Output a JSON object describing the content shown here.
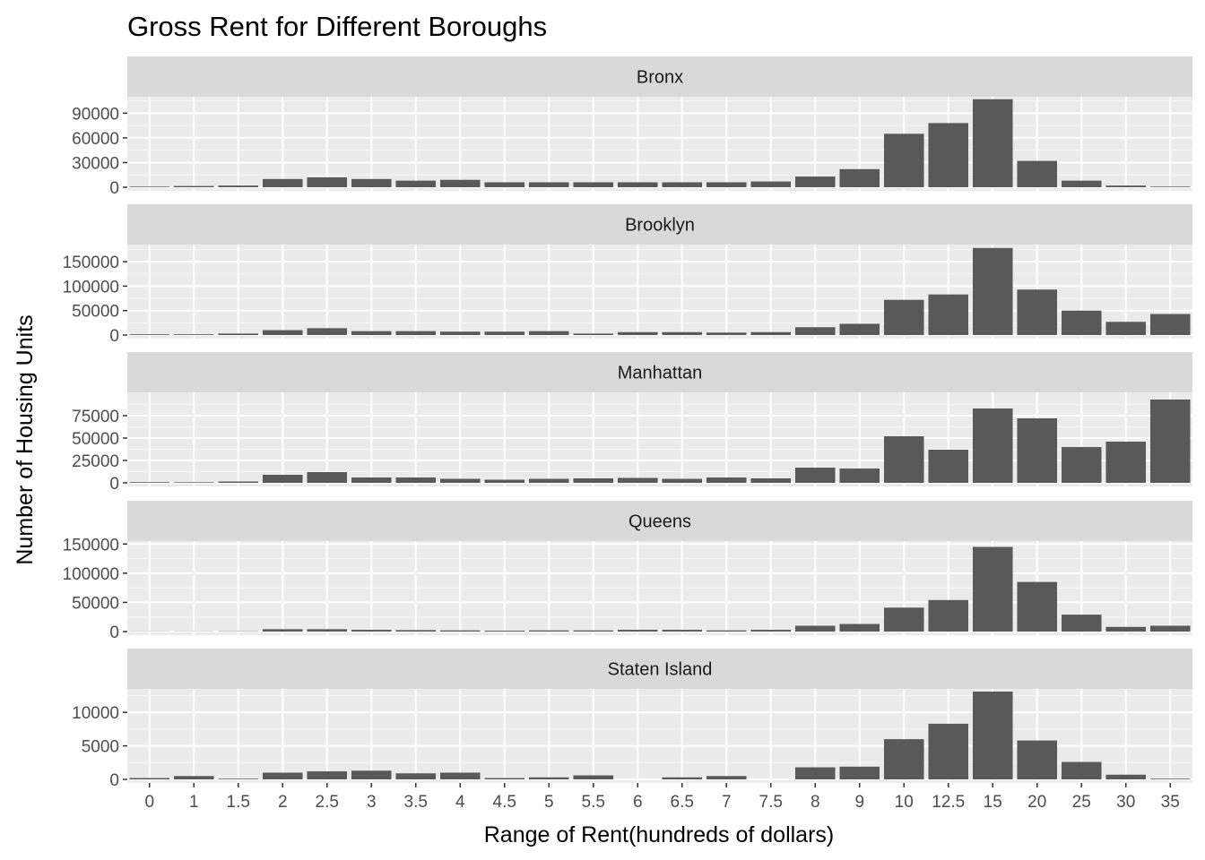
{
  "chart_data": {
    "type": "bar",
    "title": "Gross Rent for Different Boroughs",
    "xlabel": "Range of Rent(hundreds of dollars)",
    "ylabel": "Number of Housing Units",
    "categories": [
      "0",
      "1",
      "1.5",
      "2",
      "2.5",
      "3",
      "3.5",
      "4",
      "4.5",
      "5",
      "5.5",
      "6",
      "6.5",
      "7",
      "7.5",
      "8",
      "9",
      "10",
      "12.5",
      "15",
      "20",
      "25",
      "30",
      "35"
    ],
    "grid": true,
    "facets": [
      {
        "name": "Bronx",
        "ylim": [
          0,
          110000
        ],
        "yticks": [
          0,
          30000,
          60000,
          90000
        ],
        "values": [
          800,
          1500,
          2000,
          10000,
          12000,
          10000,
          8000,
          9000,
          6000,
          6000,
          6000,
          6000,
          6000,
          6000,
          7000,
          13000,
          22000,
          65000,
          78000,
          107000,
          32000,
          8000,
          2000,
          800
        ]
      },
      {
        "name": "Brooklyn",
        "ylim": [
          0,
          185000
        ],
        "yticks": [
          0,
          50000,
          100000,
          150000
        ],
        "values": [
          1500,
          1500,
          3000,
          10000,
          14000,
          8000,
          8000,
          7000,
          7000,
          8000,
          3000,
          6000,
          6000,
          5000,
          6000,
          16000,
          23000,
          72000,
          83000,
          178000,
          93000,
          50000,
          27000,
          43000
        ]
      },
      {
        "name": "Manhattan",
        "ylim": [
          0,
          101000
        ],
        "yticks": [
          0,
          25000,
          50000,
          75000
        ],
        "values": [
          800,
          700,
          1500,
          9000,
          12000,
          6000,
          6000,
          4500,
          3500,
          4500,
          5000,
          5500,
          4500,
          6000,
          5000,
          17000,
          16000,
          52000,
          37000,
          83000,
          72000,
          40000,
          46000,
          93000
        ]
      },
      {
        "name": "Queens",
        "ylim": [
          0,
          155000
        ],
        "yticks": [
          0,
          50000,
          100000,
          150000
        ],
        "values": [
          300,
          300,
          500,
          4000,
          4000,
          3000,
          2500,
          2000,
          1500,
          2000,
          2000,
          3000,
          3000,
          2000,
          3000,
          10000,
          13000,
          41000,
          54000,
          145000,
          85000,
          29000,
          8000,
          10000
        ]
      },
      {
        "name": "Staten Island",
        "ylim": [
          0,
          13500
        ],
        "yticks": [
          0,
          5000,
          10000
        ],
        "values": [
          200,
          500,
          100,
          1000,
          1200,
          1300,
          900,
          1000,
          200,
          300,
          600,
          0,
          300,
          500,
          0,
          1800,
          1900,
          6000,
          8300,
          13100,
          5800,
          2600,
          700,
          100
        ]
      }
    ]
  }
}
